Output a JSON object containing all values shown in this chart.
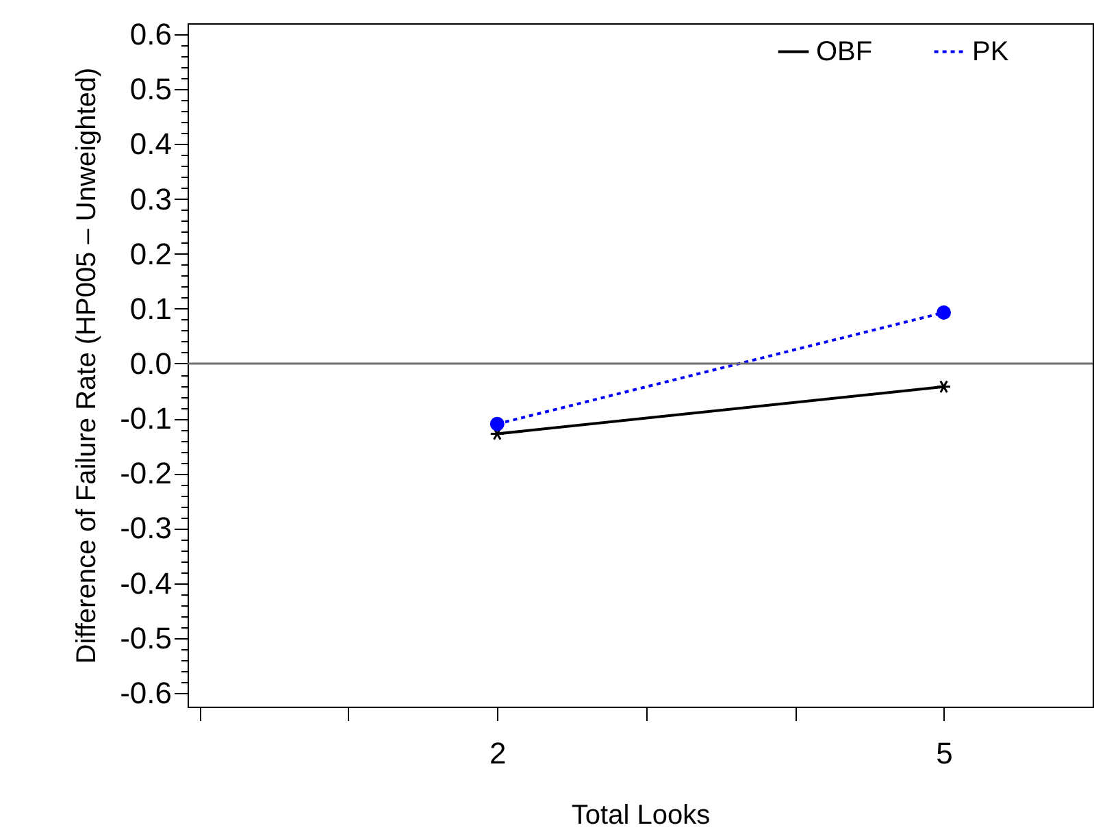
{
  "chart_data": {
    "type": "line",
    "xlabel": "Total Looks",
    "ylabel": "Difference of Failure Rate (HP005 – Unweighted)",
    "xlim": [
      -0.08,
      6
    ],
    "ylim": [
      -0.625,
      0.62
    ],
    "xticks": [
      {
        "value": 0,
        "label": null
      },
      {
        "value": 1,
        "label": null
      },
      2,
      {
        "value": 3,
        "label": null
      },
      {
        "value": 4,
        "label": null
      },
      5
    ],
    "yticks": [
      -0.6,
      {
        "value": -0.58,
        "label": null
      },
      {
        "value": -0.56,
        "label": null
      },
      {
        "value": -0.54,
        "label": null
      },
      {
        "value": -0.52,
        "label": null
      },
      -0.5,
      {
        "value": -0.48,
        "label": null
      },
      {
        "value": -0.46,
        "label": null
      },
      {
        "value": -0.44,
        "label": null
      },
      {
        "value": -0.42,
        "label": null
      },
      -0.4,
      {
        "value": -0.38,
        "label": null
      },
      {
        "value": -0.36,
        "label": null
      },
      {
        "value": -0.34,
        "label": null
      },
      {
        "value": -0.32,
        "label": null
      },
      -0.3,
      {
        "value": -0.28,
        "label": null
      },
      {
        "value": -0.26,
        "label": null
      },
      {
        "value": -0.24,
        "label": null
      },
      {
        "value": -0.22,
        "label": null
      },
      -0.2,
      {
        "value": -0.18,
        "label": null
      },
      {
        "value": -0.16,
        "label": null
      },
      {
        "value": -0.14,
        "label": null
      },
      {
        "value": -0.12,
        "label": null
      },
      -0.1,
      {
        "value": -0.08,
        "label": null
      },
      {
        "value": -0.06,
        "label": null
      },
      {
        "value": -0.04,
        "label": null
      },
      {
        "value": -0.02,
        "label": null
      },
      {
        "value": 0,
        "label": "0.0"
      },
      {
        "value": 0.02,
        "label": null
      },
      {
        "value": 0.04,
        "label": null
      },
      {
        "value": 0.06,
        "label": null
      },
      {
        "value": 0.08,
        "label": null
      },
      0.1,
      {
        "value": 0.12,
        "label": null
      },
      {
        "value": 0.14,
        "label": null
      },
      {
        "value": 0.16,
        "label": null
      },
      {
        "value": 0.18,
        "label": null
      },
      0.2,
      {
        "value": 0.22,
        "label": null
      },
      {
        "value": 0.24,
        "label": null
      },
      {
        "value": 0.26,
        "label": null
      },
      {
        "value": 0.28,
        "label": null
      },
      0.3,
      {
        "value": 0.32,
        "label": null
      },
      {
        "value": 0.34,
        "label": null
      },
      {
        "value": 0.36,
        "label": null
      },
      {
        "value": 0.38,
        "label": null
      },
      0.4,
      {
        "value": 0.42,
        "label": null
      },
      {
        "value": 0.44,
        "label": null
      },
      {
        "value": 0.46,
        "label": null
      },
      {
        "value": 0.48,
        "label": null
      },
      0.5,
      {
        "value": 0.52,
        "label": null
      },
      {
        "value": 0.54,
        "label": null
      },
      {
        "value": 0.56,
        "label": null
      },
      {
        "value": 0.58,
        "label": null
      },
      0.6
    ],
    "x": [
      2,
      5
    ],
    "series": [
      {
        "name": "OBF",
        "color": "#000000",
        "values": [
          -0.128,
          -0.042
        ],
        "marker": "cross",
        "line_style": "solid"
      },
      {
        "name": "PK",
        "color": "#0000ff",
        "values": [
          -0.11,
          0.093
        ],
        "marker": "circle",
        "line_style": "dotted"
      }
    ],
    "ref_lines": [
      {
        "axis": "y",
        "value": 0,
        "color": "#707070"
      }
    ],
    "legend": "top right",
    "grid": false
  }
}
